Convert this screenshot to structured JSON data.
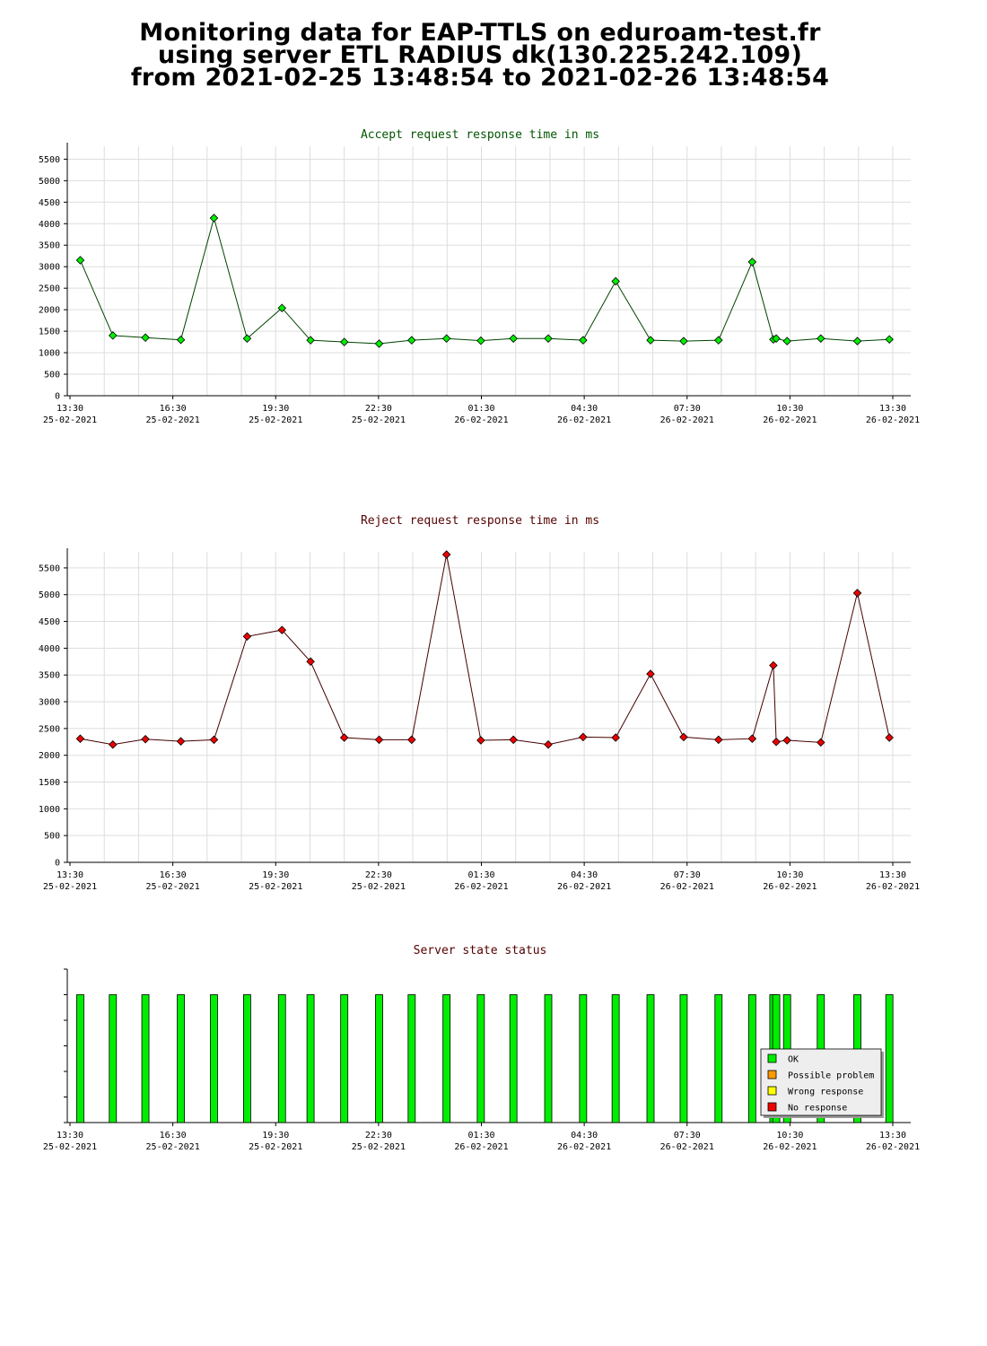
{
  "page_title": {
    "line1": "Monitoring data for EAP-TTLS on eduroam-test.fr",
    "line2": "using server ETL RADIUS dk(130.225.242.109)",
    "line3": "from 2021-02-25 13:48:54 to 2021-02-26 13:48:54"
  },
  "x_ticks": [
    {
      "time": "13:30",
      "date": "25-02-2021"
    },
    {
      "time": "16:30",
      "date": "25-02-2021"
    },
    {
      "time": "19:30",
      "date": "25-02-2021"
    },
    {
      "time": "22:30",
      "date": "25-02-2021"
    },
    {
      "time": "01:30",
      "date": "26-02-2021"
    },
    {
      "time": "04:30",
      "date": "26-02-2021"
    },
    {
      "time": "07:30",
      "date": "26-02-2021"
    },
    {
      "time": "10:30",
      "date": "26-02-2021"
    },
    {
      "time": "13:30",
      "date": "26-02-2021"
    }
  ],
  "chart_data": [
    {
      "type": "line",
      "title": "Accept request response time in ms",
      "xlabel": "",
      "ylabel": "",
      "x_range": [
        "2021-02-25 13:30",
        "2021-02-26 13:30"
      ],
      "ylim": [
        0,
        5800
      ],
      "yticks": [
        0,
        500,
        1000,
        1500,
        2000,
        2500,
        3000,
        3500,
        4000,
        4500,
        5000,
        5500
      ],
      "grid": true,
      "colors": {
        "line": "#004400",
        "marker": "#00ee00",
        "title": "#005500"
      },
      "series": [
        {
          "x": [
            "2021-02-25 13:48",
            "2021-02-25 14:45",
            "2021-02-25 15:42",
            "2021-02-25 16:44",
            "2021-02-25 17:42",
            "2021-02-25 18:40",
            "2021-02-25 19:41",
            "2021-02-25 20:31",
            "2021-02-25 21:30",
            "2021-02-25 22:31",
            "2021-02-25 23:28",
            "2021-02-26 00:29",
            "2021-02-26 01:29",
            "2021-02-26 02:26",
            "2021-02-26 03:27",
            "2021-02-26 04:28",
            "2021-02-26 05:25",
            "2021-02-26 06:26",
            "2021-02-26 07:24",
            "2021-02-26 08:25",
            "2021-02-26 09:24",
            "2021-02-26 10:01",
            "2021-02-26 10:06",
            "2021-02-26 10:25",
            "2021-02-26 11:24",
            "2021-02-26 12:28",
            "2021-02-26 13:24"
          ],
          "values": [
            3150,
            1400,
            1350,
            1300,
            4130,
            1330,
            2040,
            1290,
            1250,
            1210,
            1290,
            1330,
            1280,
            1330,
            1330,
            1290,
            2660,
            1290,
            1270,
            1290,
            3110,
            1310,
            1330,
            1270,
            1330,
            1270,
            1310
          ]
        }
      ]
    },
    {
      "type": "line",
      "title": "Reject request response time in ms",
      "xlabel": "",
      "ylabel": "",
      "x_range": [
        "2021-02-25 13:30",
        "2021-02-26 13:30"
      ],
      "ylim": [
        0,
        5800
      ],
      "yticks": [
        0,
        500,
        1000,
        1500,
        2000,
        2500,
        3000,
        3500,
        4000,
        4500,
        5000,
        5500
      ],
      "grid": true,
      "colors": {
        "line": "#440000",
        "marker": "#ee0000",
        "title": "#550000"
      },
      "series": [
        {
          "x": [
            "2021-02-25 13:48",
            "2021-02-25 14:45",
            "2021-02-25 15:42",
            "2021-02-25 16:44",
            "2021-02-25 17:42",
            "2021-02-25 18:40",
            "2021-02-25 19:41",
            "2021-02-25 20:31",
            "2021-02-25 21:30",
            "2021-02-25 22:31",
            "2021-02-25 23:28",
            "2021-02-26 00:29",
            "2021-02-26 01:29",
            "2021-02-26 02:26",
            "2021-02-26 03:27",
            "2021-02-26 04:28",
            "2021-02-26 05:25",
            "2021-02-26 06:26",
            "2021-02-26 07:24",
            "2021-02-26 08:25",
            "2021-02-26 09:24",
            "2021-02-26 10:01",
            "2021-02-26 10:06",
            "2021-02-26 10:25",
            "2021-02-26 11:24",
            "2021-02-26 12:28",
            "2021-02-26 13:24"
          ],
          "values": [
            2310,
            2200,
            2300,
            2260,
            2290,
            4220,
            4340,
            3750,
            2330,
            2290,
            2290,
            5750,
            2280,
            2290,
            2200,
            2340,
            2330,
            3520,
            2340,
            2290,
            2310,
            3680,
            2250,
            2280,
            2240,
            5030,
            2330
          ]
        }
      ]
    },
    {
      "type": "bar",
      "title": "Server state status",
      "xlabel": "",
      "ylabel": "",
      "x_range": [
        "2021-02-25 13:30",
        "2021-02-26 13:30"
      ],
      "grid": false,
      "legend": {
        "placement": "bottom-right",
        "entries": [
          {
            "label": "OK",
            "color": "#00ee00"
          },
          {
            "label": "Possible problem",
            "color": "#ff9900"
          },
          {
            "label": "Wrong response",
            "color": "#ffff00"
          },
          {
            "label": "No response",
            "color": "#ee0000"
          }
        ]
      },
      "colors": {
        "title": "#550000"
      },
      "series": [
        {
          "name": "OK",
          "x": [
            "2021-02-25 13:48",
            "2021-02-25 14:45",
            "2021-02-25 15:42",
            "2021-02-25 16:44",
            "2021-02-25 17:42",
            "2021-02-25 18:40",
            "2021-02-25 19:41",
            "2021-02-25 20:31",
            "2021-02-25 21:30",
            "2021-02-25 22:31",
            "2021-02-25 23:28",
            "2021-02-26 00:29",
            "2021-02-26 01:29",
            "2021-02-26 02:26",
            "2021-02-26 03:27",
            "2021-02-26 04:28",
            "2021-02-26 05:25",
            "2021-02-26 06:26",
            "2021-02-26 07:24",
            "2021-02-26 08:25",
            "2021-02-26 09:24",
            "2021-02-26 10:01",
            "2021-02-26 10:06",
            "2021-02-26 10:25",
            "2021-02-26 11:24",
            "2021-02-26 12:28",
            "2021-02-26 13:24"
          ],
          "values": [
            1,
            1,
            1,
            1,
            1,
            1,
            1,
            1,
            1,
            1,
            1,
            1,
            1,
            1,
            1,
            1,
            1,
            1,
            1,
            1,
            1,
            1,
            1,
            1,
            1,
            1,
            1
          ]
        }
      ]
    }
  ]
}
